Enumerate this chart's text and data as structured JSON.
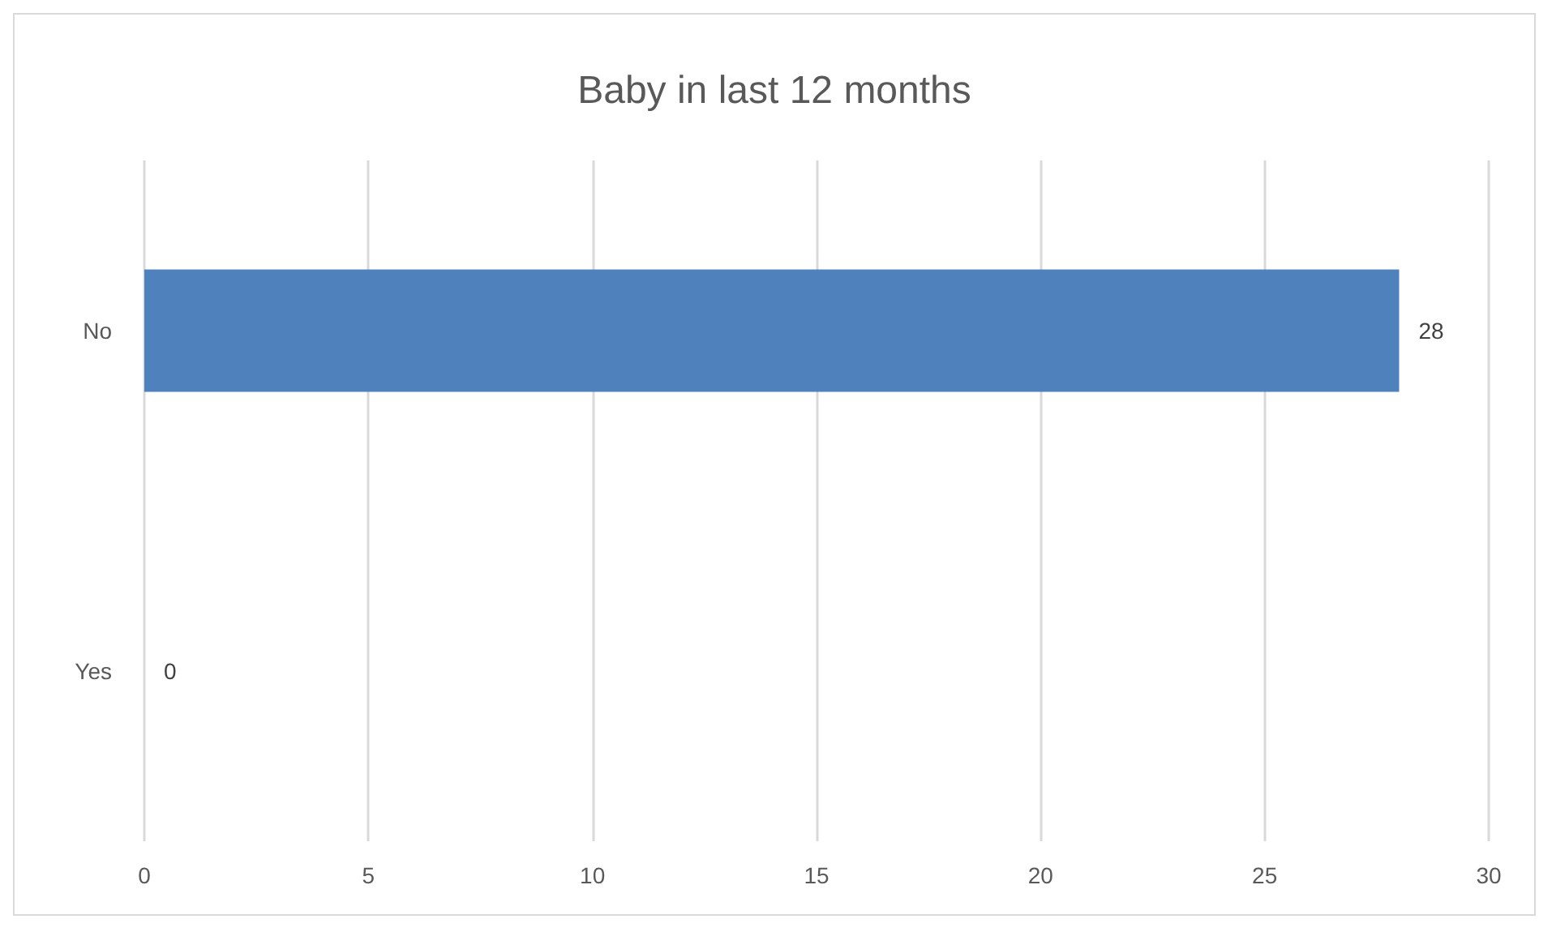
{
  "chart_data": {
    "type": "bar",
    "title": "Baby in last 12 months",
    "orientation": "horizontal",
    "categories": [
      "No",
      "Yes"
    ],
    "values": [
      28,
      0
    ],
    "color": "#4f81bd",
    "xlim": [
      0,
      30
    ],
    "xticks": [
      0,
      5,
      10,
      15,
      20,
      25,
      30
    ],
    "grid": "x",
    "data_labels": true
  }
}
